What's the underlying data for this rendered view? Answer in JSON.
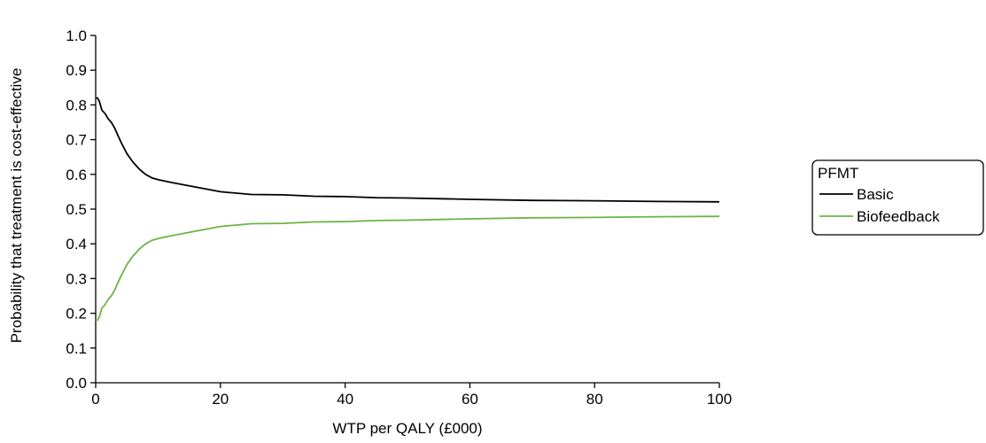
{
  "chart_data": {
    "type": "line",
    "xlabel": "WTP per QALY (£000)",
    "ylabel": "Probability that treatment is cost-effective",
    "xlim": [
      0,
      100
    ],
    "ylim": [
      0,
      1
    ],
    "x_ticks": [
      0,
      20,
      40,
      60,
      80,
      100
    ],
    "x_tick_labels": [
      "0",
      "20",
      "40",
      "60",
      "80",
      "100"
    ],
    "y_ticks": [
      0,
      0.1,
      0.2,
      0.3,
      0.4,
      0.5,
      0.6,
      0.7,
      0.8,
      0.9,
      1.0
    ],
    "y_tick_labels": [
      "0.0",
      "0.1",
      "0.2",
      "0.3",
      "0.4",
      "0.5",
      "0.6",
      "0.7",
      "0.8",
      "0.9",
      "1.0"
    ],
    "grid": false,
    "legend": {
      "title": "PFMT",
      "position": "right"
    },
    "series": [
      {
        "name": "Basic",
        "color": "#000000",
        "x": [
          0,
          0.3,
          0.6,
          1,
          1.5,
          2,
          2.5,
          3,
          3.5,
          4,
          5,
          6,
          7,
          8,
          9,
          10,
          12,
          15,
          20,
          25,
          30,
          35,
          40,
          45,
          50,
          60,
          70,
          80,
          90,
          100
        ],
        "y": [
          0.82,
          0.82,
          0.81,
          0.785,
          0.775,
          0.76,
          0.75,
          0.735,
          0.715,
          0.695,
          0.66,
          0.635,
          0.615,
          0.6,
          0.59,
          0.585,
          0.577,
          0.567,
          0.55,
          0.542,
          0.541,
          0.537,
          0.536,
          0.533,
          0.532,
          0.528,
          0.525,
          0.524,
          0.522,
          0.521
        ]
      },
      {
        "name": "Biofeedback",
        "color": "#6ab546",
        "x": [
          0,
          0.3,
          0.6,
          1,
          1.5,
          2,
          2.5,
          3,
          3.5,
          4,
          5,
          6,
          7,
          8,
          9,
          10,
          12,
          15,
          20,
          25,
          30,
          35,
          40,
          45,
          50,
          60,
          70,
          80,
          90,
          100
        ],
        "y": [
          0.18,
          0.18,
          0.19,
          0.215,
          0.225,
          0.24,
          0.25,
          0.265,
          0.285,
          0.305,
          0.34,
          0.365,
          0.385,
          0.4,
          0.41,
          0.415,
          0.423,
          0.433,
          0.45,
          0.458,
          0.459,
          0.463,
          0.464,
          0.467,
          0.468,
          0.472,
          0.475,
          0.476,
          0.478,
          0.479
        ]
      }
    ]
  }
}
